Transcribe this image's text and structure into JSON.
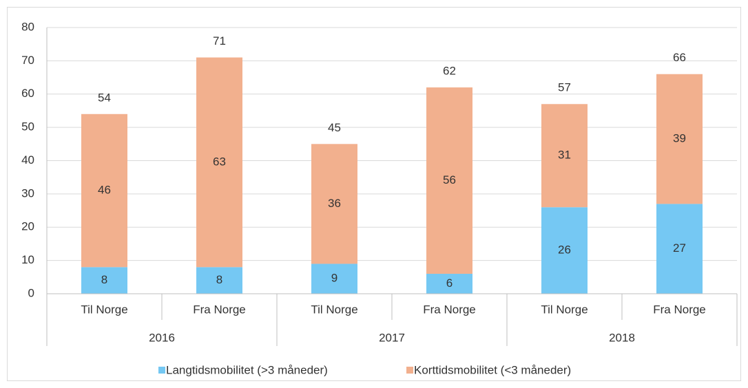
{
  "chart_data": {
    "type": "stacked_bar",
    "categories": [
      "Til Norge",
      "Fra Norge",
      "Til Norge",
      "Fra Norge",
      "Til Norge",
      "Fra Norge"
    ],
    "groups": [
      "2016",
      "2017",
      "2018"
    ],
    "series": [
      {
        "name": "Langtidsmobilitet (>3 måneder)",
        "color": "#75c8f3",
        "values": [
          8,
          8,
          9,
          6,
          26,
          27
        ]
      },
      {
        "name": "Korttidsmobilitet (<3 måneder)",
        "color": "#f2b08e",
        "values": [
          46,
          63,
          36,
          56,
          31,
          39
        ]
      }
    ],
    "totals": [
      54,
      71,
      45,
      62,
      57,
      66
    ],
    "ylim": [
      0,
      80
    ],
    "yticks": [
      0,
      10,
      20,
      30,
      40,
      50,
      60,
      70,
      80
    ],
    "grid": true,
    "legend": "bottom"
  }
}
